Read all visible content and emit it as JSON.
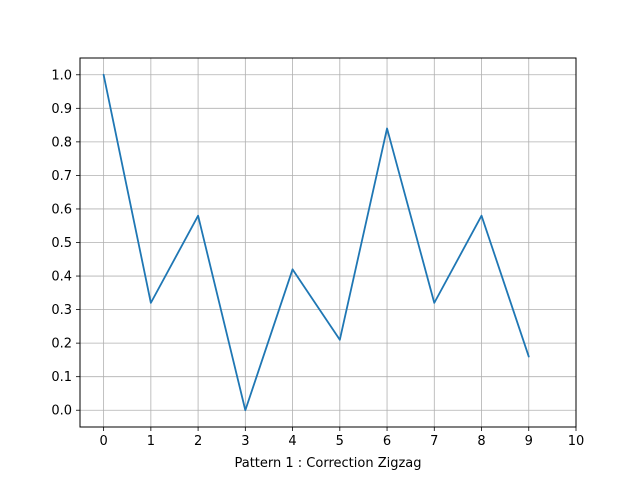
{
  "chart_data": {
    "type": "line",
    "title": "",
    "xlabel": "Pattern 1 : Correction Zigzag",
    "ylabel": "",
    "x": [
      0,
      1,
      2,
      3,
      4,
      5,
      6,
      7,
      8,
      9
    ],
    "series": [
      {
        "values": [
          1.0,
          0.32,
          0.58,
          0.0,
          0.42,
          0.21,
          0.84,
          0.32,
          0.58,
          0.16
        ]
      }
    ],
    "xlim": [
      -0.5,
      10.0
    ],
    "ylim": [
      -0.05,
      1.05
    ],
    "xticks": [
      0,
      1,
      2,
      3,
      4,
      5,
      6,
      7,
      8,
      9,
      10
    ],
    "xtick_labels": [
      "0",
      "1",
      "2",
      "3",
      "4",
      "5",
      "6",
      "7",
      "8",
      "9",
      "10"
    ],
    "yticks": [
      0.0,
      0.1,
      0.2,
      0.3,
      0.4,
      0.5,
      0.6,
      0.7,
      0.8,
      0.9,
      1.0
    ],
    "ytick_labels": [
      "0.0",
      "0.1",
      "0.2",
      "0.3",
      "0.4",
      "0.5",
      "0.6",
      "0.7",
      "0.8",
      "0.9",
      "1.0"
    ],
    "grid": true,
    "legend": "none",
    "colors": {
      "line": "#1f77b4",
      "grid": "#b0b0b0",
      "axis": "#000000"
    }
  }
}
